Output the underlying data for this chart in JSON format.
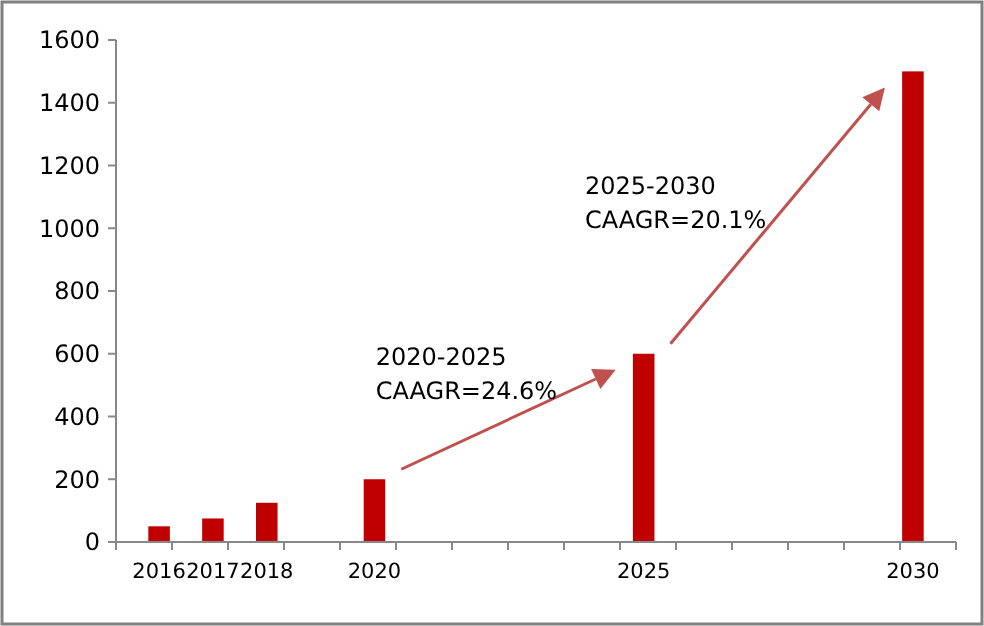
{
  "chart_data": {
    "type": "bar",
    "categories": [
      "2016",
      "2017",
      "2018",
      null,
      "2020",
      null,
      null,
      null,
      null,
      "2025",
      null,
      null,
      null,
      null,
      "2030"
    ],
    "values": [
      50,
      75,
      125,
      null,
      200,
      null,
      null,
      null,
      null,
      600,
      null,
      null,
      null,
      null,
      1500
    ],
    "color": "#c00000",
    "ylim": [
      0,
      1600
    ],
    "yticks": [
      0,
      200,
      400,
      600,
      800,
      1000,
      1200,
      1400,
      1600
    ],
    "grid": false,
    "annotations": [
      "2020-2025\nCAAGR=24.6%",
      "2025-2030\nCAAGR=20.1%"
    ]
  }
}
